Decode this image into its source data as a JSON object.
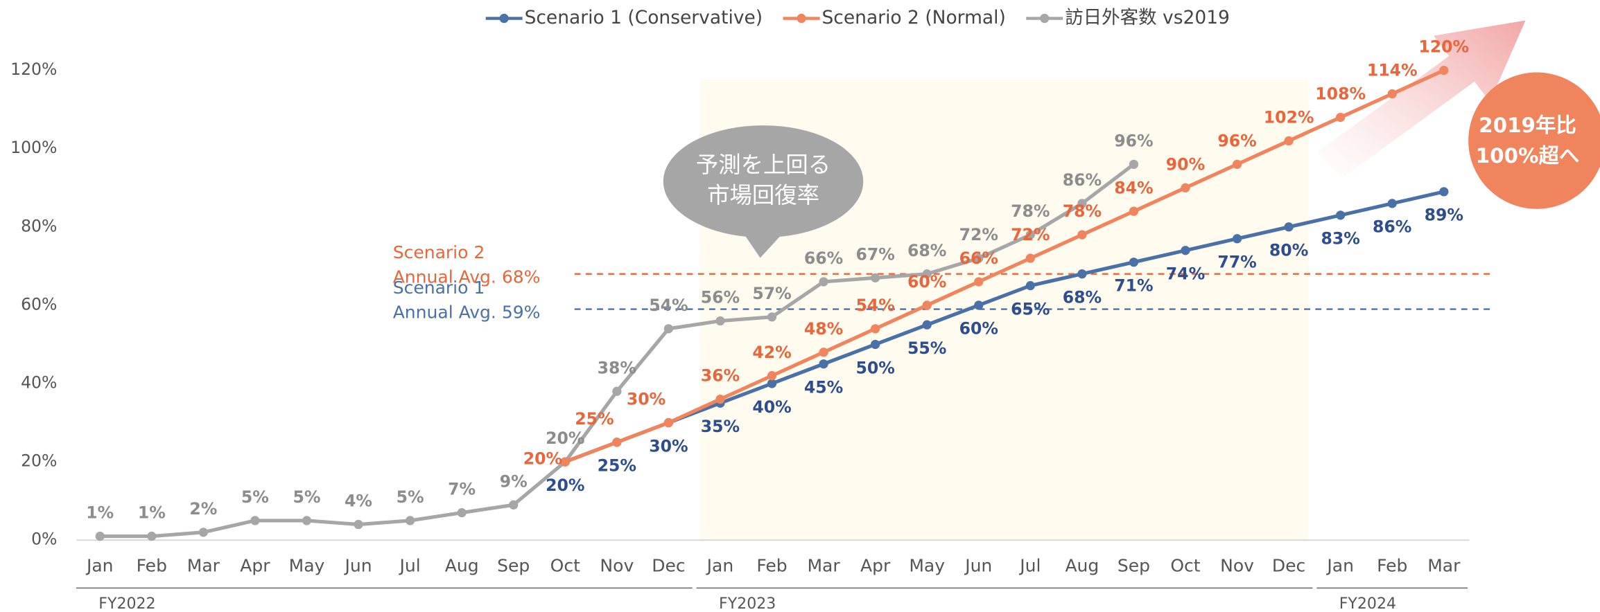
{
  "chart_data": {
    "type": "line",
    "categories": [
      "Jan",
      "Feb",
      "Mar",
      "Apr",
      "May",
      "Jun",
      "Jul",
      "Aug",
      "Sep",
      "Oct",
      "Nov",
      "Dec",
      "Jan",
      "Feb",
      "Mar",
      "Apr",
      "May",
      "Jun",
      "Jul",
      "Aug",
      "Sep",
      "Oct",
      "Nov",
      "Dec",
      "Jan",
      "Feb",
      "Mar"
    ],
    "groups": [
      {
        "label": "FY2022",
        "from": 0,
        "to": 11
      },
      {
        "label": "FY2023",
        "from": 12,
        "to": 23
      },
      {
        "label": "FY2024",
        "from": 24,
        "to": 26
      }
    ],
    "series": [
      {
        "name": "Scenario 1 (Conservative)",
        "color": "#4a70a8",
        "label_color": "#2e4d8f",
        "values": [
          null,
          null,
          null,
          null,
          null,
          null,
          null,
          null,
          null,
          20,
          25,
          30,
          35,
          40,
          45,
          50,
          55,
          60,
          65,
          68,
          71,
          74,
          77,
          80,
          83,
          86,
          89
        ],
        "value_labels": [
          null,
          null,
          null,
          null,
          null,
          null,
          null,
          null,
          null,
          "20%",
          "25%",
          "30%",
          "35%",
          "40%",
          "45%",
          "50%",
          "55%",
          "60%",
          "65%",
          "68%",
          "71%",
          "74%",
          "77%",
          "80%",
          "83%",
          "86%",
          "89%"
        ]
      },
      {
        "name": "Scenario 2 (Normal)",
        "color": "#f0845c",
        "label_color": "#e8663b",
        "values": [
          null,
          null,
          null,
          null,
          null,
          null,
          null,
          null,
          null,
          20,
          25,
          30,
          36,
          42,
          48,
          54,
          60,
          66,
          72,
          78,
          84,
          90,
          96,
          102,
          108,
          114,
          120
        ],
        "value_labels": [
          null,
          null,
          null,
          null,
          null,
          null,
          null,
          null,
          null,
          "20%",
          "25%",
          "30%",
          "36%",
          "42%",
          "48%",
          "54%",
          "60%",
          "66%",
          "72%",
          "78%",
          "84%",
          "90%",
          "96%",
          "102%",
          "108%",
          "114%",
          "120%"
        ]
      },
      {
        "name": "訪日外客数 vs2019",
        "color": "#a6a6a6",
        "label_color": "#8c8c8c",
        "values": [
          1,
          1,
          2,
          5,
          5,
          4,
          5,
          7,
          9,
          20,
          38,
          54,
          56,
          57,
          66,
          67,
          68,
          72,
          78,
          86,
          96,
          null,
          null,
          null,
          null,
          null,
          null
        ],
        "value_labels": [
          "1%",
          "1%",
          "2%",
          "5%",
          "5%",
          "4%",
          "5%",
          "7%",
          "9%",
          "20%",
          "38%",
          "54%",
          "56%",
          "57%",
          "66%",
          "67%",
          "68%",
          "72%",
          "78%",
          "86%",
          "96%",
          null,
          null,
          null,
          null,
          null,
          null
        ]
      }
    ],
    "ylim": [
      0,
      120
    ],
    "yticks": [
      {
        "value": 0,
        "label": "0%"
      },
      {
        "value": 20,
        "label": "20%"
      },
      {
        "value": 40,
        "label": "40%"
      },
      {
        "value": 60,
        "label": "60%"
      },
      {
        "value": 80,
        "label": "80%"
      },
      {
        "value": 100,
        "label": "100%"
      },
      {
        "value": 120,
        "label": "120%"
      }
    ],
    "reference_lines": [
      {
        "name": "Scenario 2",
        "text": "Annual Avg. 68%",
        "value": 68,
        "color": "#e8663b"
      },
      {
        "name": "Scenario 1",
        "text": "Annual Avg. 59%",
        "value": 59,
        "color": "#4a70a8"
      }
    ],
    "callout": [
      "予測を上回る",
      "市場回復率"
    ],
    "badge": [
      "2019年比",
      "100%超へ"
    ],
    "legend": "top"
  }
}
